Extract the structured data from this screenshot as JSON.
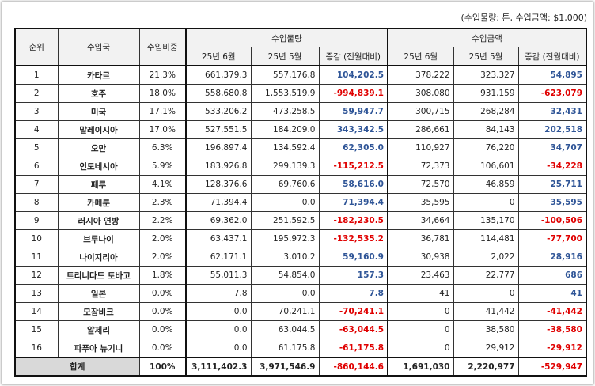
{
  "unit_note": "(수입물량: 톤, 수입금액: $1,000)",
  "headers": {
    "rank": "순위",
    "country": "수입국",
    "share": "수입비중",
    "volume": "수입물량",
    "amount": "수입금액",
    "jun": "25년 6월",
    "may": "25년 5월",
    "change": "증감 (전월대비)"
  },
  "colors": {
    "positive": "#2f5597",
    "negative": "#e00000"
  },
  "rows": [
    [
      "1",
      "카타르",
      "21.3%",
      "661,379.3",
      "557,176.8",
      "104,202.5",
      "378,222",
      "323,327",
      "54,895"
    ],
    [
      "2",
      "호주",
      "18.0%",
      "558,680.8",
      "1,553,519.9",
      "-994,839.1",
      "308,080",
      "931,159",
      "-623,079"
    ],
    [
      "3",
      "미국",
      "17.1%",
      "533,206.2",
      "473,258.5",
      "59,947.7",
      "300,715",
      "268,284",
      "32,431"
    ],
    [
      "4",
      "말레이시아",
      "17.0%",
      "527,551.5",
      "184,209.0",
      "343,342.5",
      "286,661",
      "84,143",
      "202,518"
    ],
    [
      "5",
      "오만",
      "6.3%",
      "196,897.4",
      "134,592.4",
      "62,305.0",
      "110,927",
      "76,220",
      "34,707"
    ],
    [
      "6",
      "인도네시아",
      "5.9%",
      "183,926.8",
      "299,139.3",
      "-115,212.5",
      "72,373",
      "106,601",
      "-34,228"
    ],
    [
      "7",
      "페루",
      "4.1%",
      "128,376.6",
      "69,760.6",
      "58,616.0",
      "72,570",
      "46,859",
      "25,711"
    ],
    [
      "8",
      "카메룬",
      "2.3%",
      "71,394.4",
      "0.0",
      "71,394.4",
      "35,595",
      "0",
      "35,595"
    ],
    [
      "9",
      "러시아 연방",
      "2.2%",
      "69,362.0",
      "251,592.5",
      "-182,230.5",
      "34,664",
      "135,170",
      "-100,506"
    ],
    [
      "10",
      "브루나이",
      "2.0%",
      "63,437.1",
      "195,972.3",
      "-132,535.2",
      "36,781",
      "114,481",
      "-77,700"
    ],
    [
      "11",
      "나이지리아",
      "2.0%",
      "62,171.1",
      "3,010.2",
      "59,160.9",
      "30,938",
      "2,022",
      "28,916"
    ],
    [
      "12",
      "트리니다드 토바고",
      "1.8%",
      "55,011.3",
      "54,854.0",
      "157.3",
      "23,463",
      "22,777",
      "686"
    ],
    [
      "13",
      "일본",
      "0.0%",
      "7.8",
      "0.0",
      "7.8",
      "41",
      "0",
      "41"
    ],
    [
      "14",
      "모잠비크",
      "0.0%",
      "0.0",
      "70,241.1",
      "-70,241.1",
      "0",
      "41,442",
      "-41,442"
    ],
    [
      "15",
      "알제리",
      "0.0%",
      "0.0",
      "63,044.5",
      "-63,044.5",
      "0",
      "38,580",
      "-38,580"
    ],
    [
      "16",
      "파푸아 뉴기니",
      "0.0%",
      "0.0",
      "61,175.8",
      "-61,175.8",
      "0",
      "29,912",
      "-29,912"
    ]
  ],
  "total": [
    "합계",
    "100%",
    "3,111,402.3",
    "3,971,546.9",
    "-860,144.6",
    "1,691,030",
    "2,220,977",
    "-529,947"
  ]
}
